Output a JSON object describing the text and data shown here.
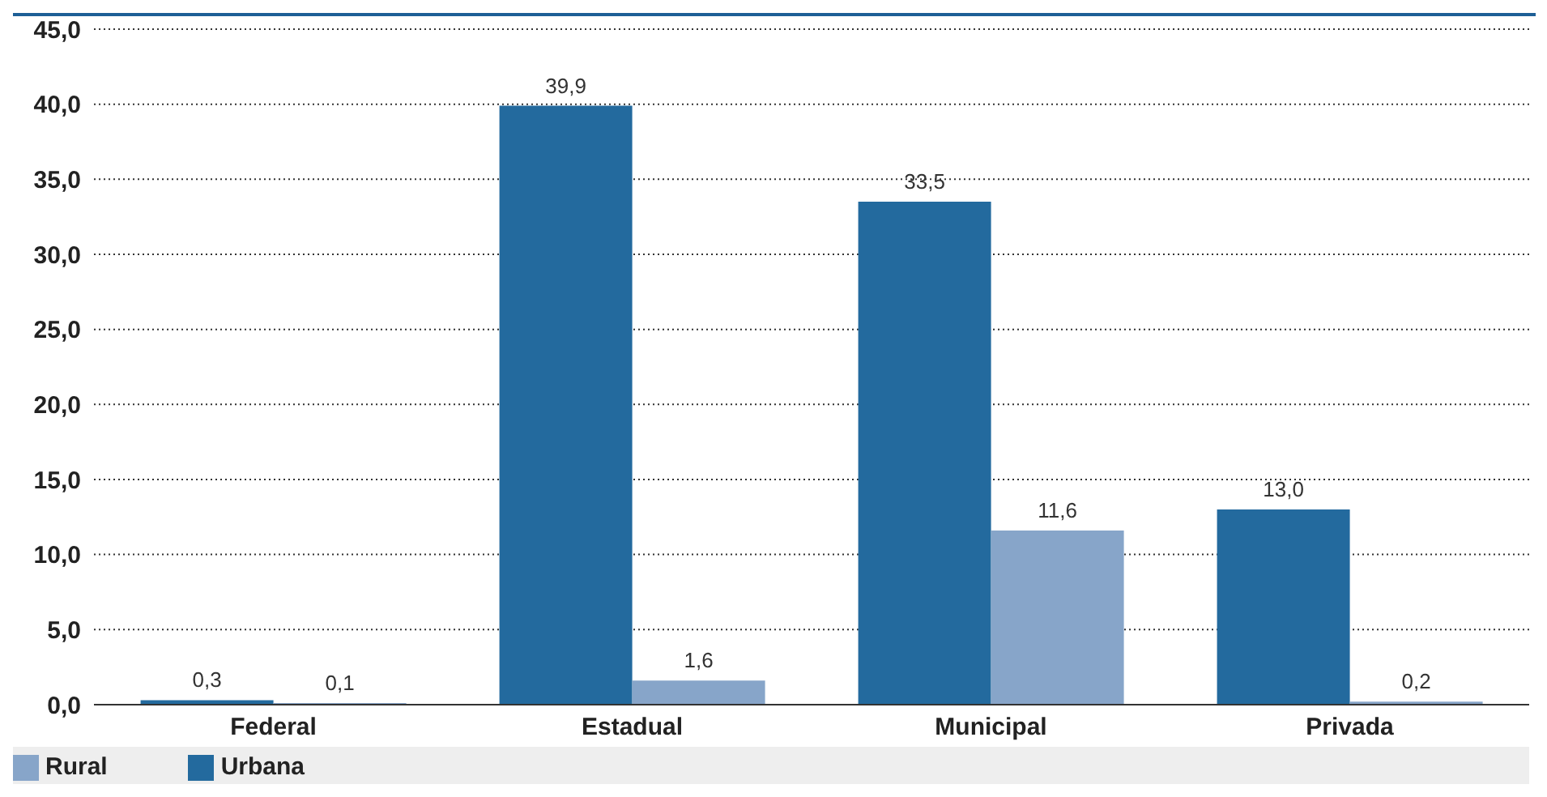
{
  "chart_data": {
    "type": "bar",
    "categories": [
      "Federal",
      "Estadual",
      "Municipal",
      "Privada"
    ],
    "series": [
      {
        "name": "Urbana",
        "color": "#236a9e",
        "values": [
          0.3,
          39.9,
          33.5,
          13.0
        ],
        "value_labels": [
          "0,3",
          "39,9",
          "33,5",
          "13,0"
        ]
      },
      {
        "name": "Rural",
        "color": "#87a5c9",
        "values": [
          0.1,
          1.6,
          11.6,
          0.2
        ],
        "value_labels": [
          "0,1",
          "1,6",
          "11,6",
          "0,2"
        ]
      }
    ],
    "ylim": [
      0,
      45
    ],
    "yticks": [
      {
        "value": 0,
        "label": "0,0"
      },
      {
        "value": 5,
        "label": "5,0"
      },
      {
        "value": 10,
        "label": "10,0"
      },
      {
        "value": 15,
        "label": "15,0"
      },
      {
        "value": 20,
        "label": "20,0"
      },
      {
        "value": 25,
        "label": "25,0"
      },
      {
        "value": 30,
        "label": "30,0"
      },
      {
        "value": 35,
        "label": "35,0"
      },
      {
        "value": 40,
        "label": "40,0"
      },
      {
        "value": 45,
        "label": "45,0"
      }
    ],
    "grid": "y",
    "legend": "bottom left"
  }
}
